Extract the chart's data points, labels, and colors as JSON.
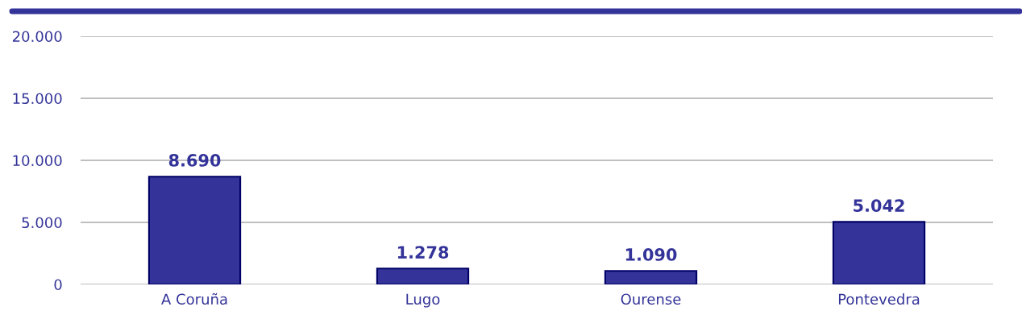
{
  "chart_data": {
    "type": "bar",
    "categories": [
      "A Coruña",
      "Lugo",
      "Ourense",
      "Pontevedra"
    ],
    "values": [
      8690,
      1278,
      1090,
      5042
    ],
    "value_labels": [
      "8.690",
      "1.278",
      "1.090",
      "5.042"
    ],
    "color": "#333399",
    "ylim": [
      0,
      20000
    ],
    "yticks": [
      {
        "value": 0,
        "label": "0"
      },
      {
        "value": 5000,
        "label": "5.000"
      },
      {
        "value": 10000,
        "label": "10.000"
      },
      {
        "value": 15000,
        "label": "15.000"
      },
      {
        "value": 20000,
        "label": "20.000"
      }
    ],
    "grid": "y",
    "legend": false
  }
}
